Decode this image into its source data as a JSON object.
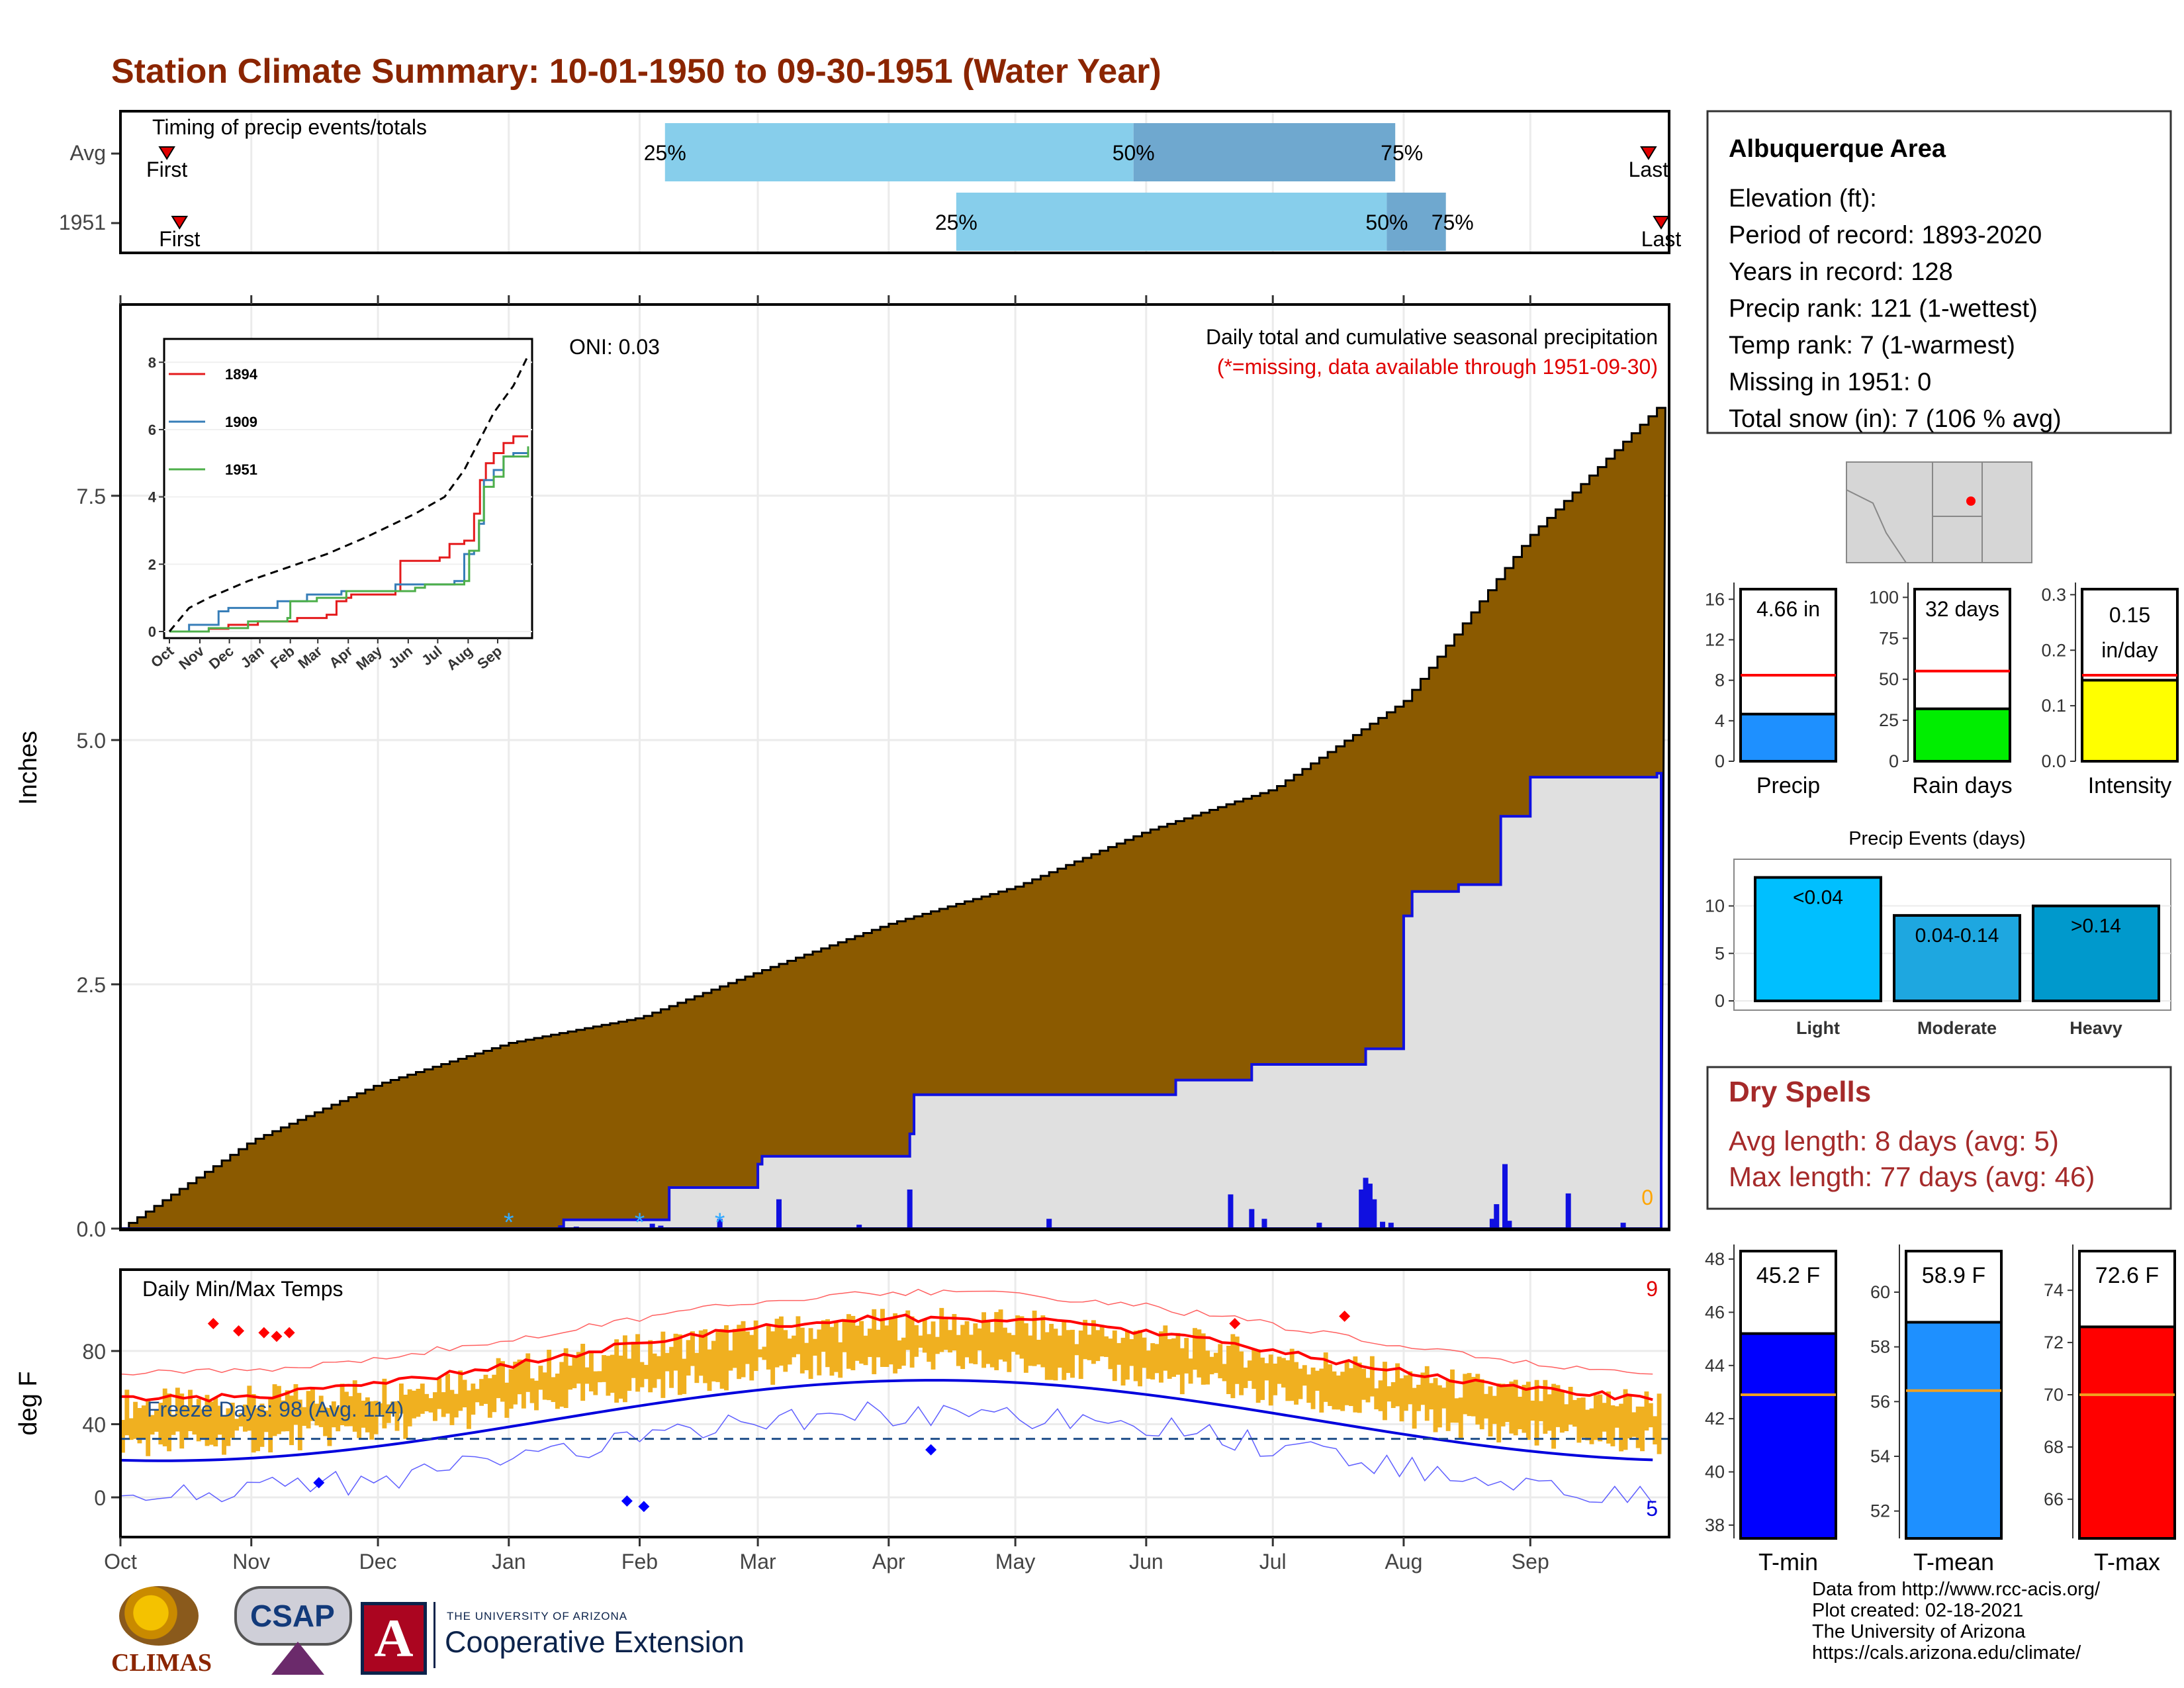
{
  "title": "Station Climate Summary: 10-01-1950 to 09-30-1951 (Water Year)",
  "months": [
    "Oct",
    "Nov",
    "Dec",
    "Jan",
    "Feb",
    "Mar",
    "Apr",
    "May",
    "Jun",
    "Jul",
    "Aug",
    "Sep"
  ],
  "timing": {
    "label": "Timing of precip events/totals",
    "rows": [
      {
        "name": "Avg",
        "first_label": "First",
        "last_label": "Last",
        "first_day": 11,
        "last_day": 362,
        "p25_day": 129,
        "p50_day": 240,
        "p75_day": 302,
        "p25_label": "25%",
        "p50_label": "50%",
        "p75_label": "75%"
      },
      {
        "name": "1951",
        "first_label": "First",
        "last_label": "Last",
        "first_day": 14,
        "last_day": 365,
        "p25_day": 198,
        "p50_day": 300,
        "p75_day": 314,
        "p25_label": "25%",
        "p50_label": "50%",
        "p75_label": "75%"
      }
    ]
  },
  "main": {
    "ylabel": "Inches",
    "yticks": [
      0.0,
      2.5,
      5.0,
      7.5
    ],
    "ytick_labels": [
      "0.0",
      "2.5",
      "5.0",
      "7.5"
    ],
    "ymax": 9.2,
    "annotation": "Daily total and cumulative seasonal precipitation",
    "missing_note": "(*=missing, data available through 1951-09-30)",
    "oni_label": "ONI: 0.03",
    "missing_count": "0",
    "avg_cumulative_color": "#8B5A00",
    "observed_fill_color": "#e0e0e0",
    "observed_line_color": "#1010e0"
  },
  "inset": {
    "yticks": [
      0,
      2,
      4,
      6,
      8
    ],
    "series": [
      {
        "name": "1894",
        "color": "#e41a1c"
      },
      {
        "name": "1909",
        "color": "#377eb8"
      },
      {
        "name": "1951",
        "color": "#4daf4a"
      }
    ]
  },
  "temps": {
    "label": "Daily Min/Max Temps",
    "ylabel": "deg F",
    "yticks": [
      0,
      40,
      80
    ],
    "ytick_labels": [
      "0",
      "40",
      "80"
    ],
    "freeze_label": "Freeze Days: 98 (Avg. 114)",
    "max_records": "9",
    "min_records": "5"
  },
  "station": {
    "name": "Albuquerque Area",
    "lines": [
      "Elevation (ft):",
      "Period of record: 1893-2020",
      "Years in record: 128",
      "Precip rank: 121 (1-wettest)",
      "Temp rank: 7 (1-warmest)",
      "Missing in 1951: 0",
      "Total snow (in): 7 (106 % avg)"
    ]
  },
  "mini_bars": [
    {
      "name": "Precip",
      "value_label": "4.66 in",
      "value": 4.66,
      "avg": 8.5,
      "ymax": 17,
      "ticks": [
        0,
        4,
        8,
        12,
        16
      ],
      "tick_labels": [
        "0",
        "4",
        "8",
        "12",
        "16"
      ],
      "color": "#1e90ff"
    },
    {
      "name": "Rain days",
      "value_label": "32 days",
      "value": 32,
      "avg": 55,
      "ymax": 105,
      "ticks": [
        0,
        25,
        50,
        75,
        100
      ],
      "tick_labels": [
        "0",
        "25",
        "50",
        "75",
        "100"
      ],
      "color": "#00ee00"
    },
    {
      "name": "Intensity",
      "value_label": "0.15\nin/day",
      "value_label_1": "0.15",
      "value_label_2": "in/day",
      "value": 0.146,
      "avg": 0.155,
      "ymax": 0.31,
      "ticks": [
        0.0,
        0.1,
        0.2,
        0.3
      ],
      "tick_labels": [
        "0.0",
        "0.1",
        "0.2",
        "0.3"
      ],
      "color": "#ffff00"
    }
  ],
  "events": {
    "title": "Precip Events (days)",
    "ticks": [
      0,
      5,
      10
    ],
    "tick_labels": [
      "0",
      "5",
      "10"
    ],
    "ymax": 14.5,
    "bars": [
      {
        "name": "Light",
        "label": "<0.04",
        "value": 13,
        "color": "#00bfff"
      },
      {
        "name": "Moderate",
        "label": "0.04-0.14",
        "value": 9,
        "color": "#1ea7e0"
      },
      {
        "name": "Heavy",
        "label": ">0.14",
        "value": 10,
        "color": "#0099cc"
      }
    ]
  },
  "dry_spells": {
    "title": "Dry Spells",
    "avg_line": "Avg length: 8 days (avg: 5)",
    "max_line": "Max length: 77 days (avg: 46)"
  },
  "temp_bars": [
    {
      "name": "T-min",
      "value_label": "45.2 F",
      "value": 45.2,
      "avg": 42.9,
      "ymin": 37.5,
      "ymax": 48.3,
      "ticks": [
        38,
        40,
        42,
        44,
        46,
        48
      ],
      "color": "#0000ff"
    },
    {
      "name": "T-mean",
      "value_label": "58.9 F",
      "value": 58.9,
      "avg": 56.4,
      "ymin": 51,
      "ymax": 61.5,
      "ticks": [
        52,
        54,
        56,
        58,
        60
      ],
      "color": "#1e90ff"
    },
    {
      "name": "T-max",
      "value_label": "72.6 F",
      "value": 72.6,
      "avg": 70.0,
      "ymin": 64.5,
      "ymax": 75.5,
      "ticks": [
        66,
        68,
        70,
        72,
        74
      ],
      "color": "#ff0000"
    }
  ],
  "footer": {
    "lines": [
      "Data from http://www.rcc-acis.org/",
      "Plot created: 02-18-2021",
      "The University of Arizona",
      "https://cals.arizona.edu/climate/"
    ],
    "climas": "CLIMAS",
    "csap": "CSAP",
    "ua_small": "THE UNIVERSITY OF ARIZONA",
    "coop": "Cooperative Extension"
  },
  "chart_data": {
    "type": "area",
    "title": "Daily total and cumulative seasonal precipitation",
    "ylabel": "Inches",
    "ylim": [
      0,
      9.2
    ],
    "x_axis": "Oct 1950 - Sep 1951 (day of water year)",
    "series": [
      {
        "name": "Average cumulative",
        "x": [
          0,
          31,
          61,
          92,
          123,
          151,
          182,
          212,
          243,
          273,
          304,
          334,
          364
        ],
        "values": [
          0,
          0.9,
          1.48,
          1.9,
          2.16,
          2.63,
          3.12,
          3.5,
          4.07,
          4.5,
          5.4,
          7.1,
          8.4
        ]
      },
      {
        "name": "1951 cumulative",
        "x": [
          0,
          104,
          105,
          130,
          151,
          152,
          187,
          188,
          250,
          268,
          295,
          304,
          306,
          317,
          327,
          334,
          356,
          364
        ],
        "values": [
          0,
          0.02,
          0.09,
          0.42,
          0.66,
          0.74,
          0.97,
          1.37,
          1.52,
          1.68,
          1.84,
          3.2,
          3.45,
          3.52,
          4.22,
          4.62,
          4.62,
          4.66
        ]
      },
      {
        "name": "Daily precip",
        "x": [
          108,
          126,
          128,
          142,
          156,
          175,
          187,
          220,
          263,
          268,
          271,
          284,
          294,
          295,
          296,
          297,
          299,
          301,
          325,
          326,
          328,
          329,
          343,
          356
        ],
        "values": [
          0.02,
          0.05,
          0.03,
          0.1,
          0.3,
          0.04,
          0.4,
          0.1,
          0.35,
          0.2,
          0.1,
          0.06,
          0.4,
          0.52,
          0.46,
          0.3,
          0.07,
          0.06,
          0.1,
          0.25,
          0.66,
          0.08,
          0.36,
          0.06
        ]
      }
    ]
  }
}
